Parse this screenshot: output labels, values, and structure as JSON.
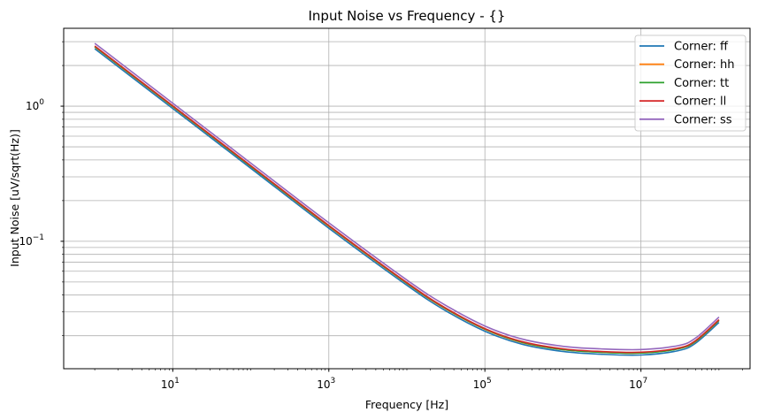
{
  "chart_data": {
    "type": "line",
    "title": "Input Noise vs Frequency - {}",
    "xlabel": "Frequency [Hz]",
    "ylabel": "Input Noise [uV/sqrt(Hz)]",
    "xscale": "log",
    "yscale": "log",
    "xlim": [
      0.4,
      250000000.0
    ],
    "ylim": [
      0.0114,
      3.77
    ],
    "x_ticks": [
      {
        "value": 10,
        "base": "10",
        "exp": "1"
      },
      {
        "value": 1000,
        "base": "10",
        "exp": "3"
      },
      {
        "value": 100000,
        "base": "10",
        "exp": "5"
      },
      {
        "value": 10000000,
        "base": "10",
        "exp": "7"
      }
    ],
    "y_ticks": [
      {
        "value": 1,
        "base": "10",
        "exp": "0"
      },
      {
        "value": 0.1,
        "base": "10",
        "exp": "−1"
      }
    ],
    "grid": "major x, major+minor y",
    "legend_position": "top-right",
    "x": [
      1,
      10,
      100,
      1000,
      10000,
      30000,
      100000,
      300000,
      1000000,
      3000000,
      10000000,
      30000000,
      50000000,
      100000000
    ],
    "series": [
      {
        "name": "Corner: ff",
        "color": "#1f77b4",
        "values": [
          2.66,
          0.961,
          0.347,
          0.125,
          0.0473,
          0.0311,
          0.0216,
          0.0173,
          0.0153,
          0.0146,
          0.0144,
          0.0155,
          0.0176,
          0.0251
        ]
      },
      {
        "name": "Corner: hh",
        "color": "#ff7f0e",
        "values": [
          2.75,
          0.991,
          0.358,
          0.129,
          0.0488,
          0.0321,
          0.0223,
          0.0178,
          0.0158,
          0.0151,
          0.0149,
          0.016,
          0.0181,
          0.0259
        ]
      },
      {
        "name": "Corner: tt",
        "color": "#2ca02c",
        "values": [
          2.76,
          0.996,
          0.359,
          0.13,
          0.049,
          0.0323,
          0.0224,
          0.0179,
          0.0158,
          0.0151,
          0.0149,
          0.016,
          0.0182,
          0.026
        ]
      },
      {
        "name": "Corner: ll",
        "color": "#d62728",
        "values": [
          2.79,
          1.006,
          0.363,
          0.131,
          0.0495,
          0.0326,
          0.0226,
          0.0181,
          0.016,
          0.0153,
          0.0151,
          0.0162,
          0.0184,
          0.0263
        ]
      },
      {
        "name": "Corner: ss",
        "color": "#9467bd",
        "values": [
          2.92,
          1.051,
          0.379,
          0.137,
          0.0517,
          0.0341,
          0.0236,
          0.0189,
          0.0167,
          0.016,
          0.0158,
          0.0169,
          0.0192,
          0.0275
        ]
      }
    ]
  }
}
